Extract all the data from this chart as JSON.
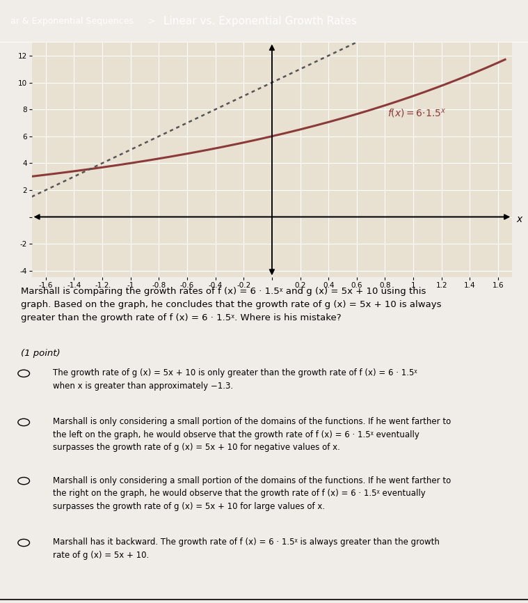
{
  "title": "Linear vs. Exponential Growth Rates",
  "breadcrumb": "ar & Exponential Sequences",
  "xlim": [
    -1.7,
    1.7
  ],
  "ylim": [
    -4.5,
    13
  ],
  "xticks": [
    -1.6,
    -1.4,
    -1.2,
    -1.0,
    -0.8,
    -0.6,
    -0.4,
    -0.2,
    0.0,
    0.2,
    0.4,
    0.6,
    0.8,
    1.0,
    1.2,
    1.4,
    1.6
  ],
  "yticks": [
    -4,
    -2,
    0,
    2,
    4,
    6,
    8,
    10,
    12
  ],
  "f_color": "#8B3A3A",
  "g_color": "#555555",
  "graph_bg": "#E8E0D0",
  "page_bg": "#F0EDE8",
  "header_color": "#5B9BD5",
  "question_text": "Marshall is comparing the growth rates of f (x) = 6 · 1.5ᵡ and g (x) = 5x + 10 using this\ngraph. Based on the graph, he concludes that the growth rate of g (x) = 5x + 10 is always\ngreater than the growth rate of f (x) = 6 · 1.5ᵡ. Where is his mistake?",
  "point_label": "(1 point)",
  "choices": [
    "The growth rate of g (x) = 5x + 10 is only greater than the growth rate of f (x) = 6 · 1.5ᵡ\nwhen x is greater than approximately −1.3.",
    "Marshall is only considering a small portion of the domains of the functions. If he went farther to\nthe left on the graph, he would observe that the growth rate of f (x) = 6 · 1.5ᵡ eventually\nsurpasses the growth rate of g (x) = 5x + 10 for negative values of x.",
    "Marshall is only considering a small portion of the domains of the functions. If he went farther to\nthe right on the graph, he would observe that the growth rate of f (x) = 6 · 1.5ᵡ eventually\nsurpasses the growth rate of g (x) = 5x + 10 for large values of x.",
    "Marshall has it backward. The growth rate of f (x) = 6 · 1.5ᵡ is always greater than the growth\nrate of g (x) = 5x + 10."
  ]
}
